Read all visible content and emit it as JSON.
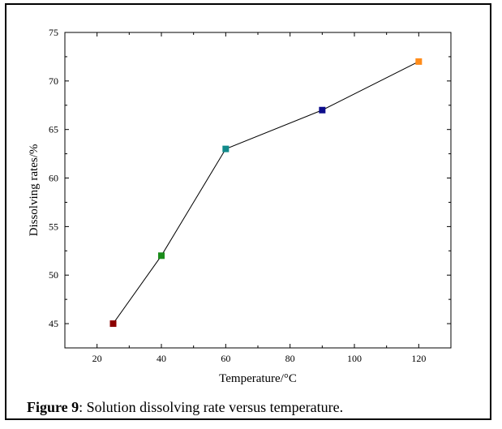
{
  "chart_data": {
    "type": "line",
    "xlabel": "Temperature/°C",
    "ylabel": "Dissolving rates/%",
    "xlim": [
      10,
      130
    ],
    "ylim": [
      42.5,
      75
    ],
    "xticks": [
      20,
      40,
      60,
      80,
      100,
      120
    ],
    "yticks": [
      45,
      50,
      55,
      60,
      65,
      70,
      75
    ],
    "grid": false,
    "legend": "none",
    "line_color": "#000000",
    "points": [
      {
        "x": 25,
        "y": 45,
        "color": "#8b0000"
      },
      {
        "x": 40,
        "y": 52,
        "color": "#1a8c1a"
      },
      {
        "x": 60,
        "y": 63,
        "color": "#108a8a"
      },
      {
        "x": 90,
        "y": 67,
        "color": "#0d0d8c"
      },
      {
        "x": 120,
        "y": 72,
        "color": "#ff8c1a"
      }
    ]
  },
  "caption": {
    "label": "Figure 9",
    "text": ": Solution dissolving rate versus temperature."
  }
}
